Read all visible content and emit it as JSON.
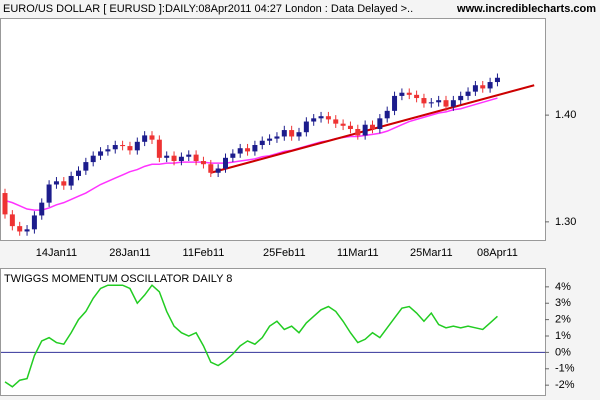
{
  "chart_data": [
    {
      "type": "candlestick",
      "title": "EURO/US DOLLAR [ EURUSD ]:DAILY:08Apr2011 04:27 London : Data Delayed >..",
      "source": "www.incrediblecharts.com",
      "categories": [
        null,
        null,
        null,
        null,
        null,
        null,
        null,
        "14Jan11",
        null,
        null,
        null,
        null,
        null,
        null,
        null,
        null,
        null,
        "28Jan11",
        null,
        null,
        null,
        null,
        null,
        null,
        null,
        null,
        null,
        "11Feb11",
        null,
        null,
        null,
        null,
        null,
        null,
        null,
        null,
        null,
        null,
        "25Feb11",
        null,
        null,
        null,
        null,
        null,
        null,
        null,
        null,
        null,
        "11Mar11",
        null,
        null,
        null,
        null,
        null,
        null,
        null,
        null,
        null,
        "25Mar11",
        null,
        null,
        null,
        null,
        null,
        null,
        null,
        null,
        "08Apr11"
      ],
      "open": [
        1.327,
        1.307,
        1.296,
        1.291,
        1.293,
        1.306,
        1.318,
        1.335,
        1.338,
        1.334,
        1.343,
        1.348,
        1.356,
        1.362,
        1.366,
        1.368,
        1.372,
        1.371,
        1.367,
        1.375,
        1.381,
        1.377,
        1.36,
        1.362,
        1.357,
        1.361,
        1.363,
        1.357,
        1.354,
        1.346,
        1.35,
        1.36,
        1.364,
        1.369,
        1.366,
        1.372,
        1.376,
        1.378,
        1.38,
        1.386,
        1.38,
        1.384,
        1.394,
        1.397,
        1.399,
        1.396,
        1.392,
        1.39,
        1.387,
        1.381,
        1.391,
        1.387,
        1.397,
        1.404,
        1.418,
        1.421,
        1.419,
        1.416,
        1.411,
        1.412,
        1.414,
        1.408,
        1.414,
        1.418,
        1.422,
        1.428,
        1.425,
        1.431
      ],
      "high": [
        1.331,
        1.311,
        1.3,
        1.297,
        1.31,
        1.322,
        1.339,
        1.342,
        1.342,
        1.347,
        1.352,
        1.36,
        1.366,
        1.37,
        1.372,
        1.376,
        1.376,
        1.375,
        1.379,
        1.385,
        1.385,
        1.381,
        1.366,
        1.366,
        1.365,
        1.367,
        1.367,
        1.361,
        1.358,
        1.354,
        1.364,
        1.368,
        1.373,
        1.373,
        1.376,
        1.38,
        1.382,
        1.384,
        1.39,
        1.39,
        1.388,
        1.398,
        1.401,
        1.403,
        1.403,
        1.4,
        1.396,
        1.394,
        1.391,
        1.395,
        1.395,
        1.401,
        1.408,
        1.422,
        1.425,
        1.425,
        1.423,
        1.42,
        1.416,
        1.418,
        1.418,
        1.418,
        1.422,
        1.426,
        1.432,
        1.432,
        1.435,
        1.439
      ],
      "low": [
        1.303,
        1.292,
        1.287,
        1.287,
        1.289,
        1.302,
        1.314,
        1.331,
        1.33,
        1.33,
        1.339,
        1.344,
        1.352,
        1.358,
        1.362,
        1.364,
        1.367,
        1.363,
        1.363,
        1.371,
        1.373,
        1.356,
        1.356,
        1.353,
        1.353,
        1.357,
        1.353,
        1.35,
        1.342,
        1.342,
        1.346,
        1.356,
        1.36,
        1.362,
        1.362,
        1.368,
        1.372,
        1.374,
        1.376,
        1.376,
        1.376,
        1.38,
        1.39,
        1.393,
        1.392,
        1.388,
        1.386,
        1.383,
        1.377,
        1.377,
        1.383,
        1.383,
        1.393,
        1.4,
        1.414,
        1.415,
        1.412,
        1.407,
        1.407,
        1.408,
        1.404,
        1.404,
        1.41,
        1.414,
        1.418,
        1.421,
        1.421,
        1.427
      ],
      "close": [
        1.307,
        1.296,
        1.291,
        1.293,
        1.306,
        1.318,
        1.335,
        1.338,
        1.334,
        1.343,
        1.348,
        1.356,
        1.362,
        1.366,
        1.368,
        1.372,
        1.371,
        1.367,
        1.375,
        1.381,
        1.377,
        1.36,
        1.362,
        1.357,
        1.361,
        1.363,
        1.357,
        1.354,
        1.346,
        1.35,
        1.36,
        1.364,
        1.369,
        1.366,
        1.372,
        1.376,
        1.378,
        1.38,
        1.386,
        1.38,
        1.384,
        1.394,
        1.397,
        1.399,
        1.396,
        1.392,
        1.39,
        1.387,
        1.381,
        1.391,
        1.387,
        1.397,
        1.404,
        1.418,
        1.421,
        1.419,
        1.416,
        1.411,
        1.412,
        1.414,
        1.408,
        1.414,
        1.418,
        1.422,
        1.428,
        1.425,
        1.431,
        1.435
      ],
      "up_color": "#1c1c8c",
      "down_color": "#ee3333",
      "series": [
        {
          "color": "#ff33ff",
          "values": [
            1.32,
            1.318,
            1.315,
            1.312,
            1.311,
            1.311,
            1.313,
            1.316,
            1.318,
            1.321,
            1.324,
            1.327,
            1.331,
            1.335,
            1.338,
            1.341,
            1.344,
            1.347,
            1.349,
            1.352,
            1.354,
            1.354,
            1.355,
            1.355,
            1.356,
            1.356,
            1.356,
            1.356,
            1.355,
            1.355,
            1.355,
            1.356,
            1.357,
            1.358,
            1.359,
            1.361,
            1.362,
            1.364,
            1.366,
            1.367,
            1.369,
            1.371,
            1.373,
            1.375,
            1.376,
            1.378,
            1.379,
            1.38,
            1.38,
            1.381,
            1.382,
            1.383,
            1.385,
            1.388,
            1.391,
            1.394,
            1.396,
            1.398,
            1.4,
            1.402,
            1.403,
            1.405,
            1.406,
            1.408,
            1.41,
            1.412,
            1.414,
            1.416
          ]
        }
      ],
      "trendline": {
        "color": "#cc0000",
        "index": [
          28,
          72
        ],
        "values": [
          1.346,
          1.428
        ]
      },
      "ylim": [
        1.283,
        1.491
      ],
      "yticks": [
        {
          "value": 1.3,
          "label": "1.30"
        },
        {
          "value": 1.4,
          "label": "1.40"
        }
      ]
    },
    {
      "type": "line",
      "title": "TWIGGS MOMENTUM OSCILLATOR DAILY 8",
      "series": [
        {
          "color": "#22cc22",
          "values": [
            -1.8,
            -2.1,
            -1.7,
            -1.6,
            -0.2,
            0.7,
            0.9,
            0.6,
            0.5,
            1.2,
            2.0,
            2.5,
            3.3,
            3.9,
            4.1,
            4.1,
            4.1,
            3.9,
            3.0,
            3.5,
            4.1,
            3.7,
            2.5,
            1.6,
            1.2,
            1.0,
            1.2,
            0.4,
            -0.6,
            -0.8,
            -0.5,
            -0.1,
            0.4,
            0.7,
            0.5,
            0.9,
            1.6,
            1.9,
            1.4,
            1.6,
            1.2,
            1.8,
            2.2,
            2.6,
            2.8,
            2.5,
            1.9,
            1.2,
            0.6,
            0.8,
            1.2,
            0.9,
            1.5,
            2.1,
            2.7,
            2.8,
            2.4,
            1.9,
            2.4,
            1.7,
            1.5,
            1.6,
            1.5,
            1.6,
            1.5,
            1.4,
            1.8,
            2.2
          ]
        }
      ],
      "zero_line_color": "#333399",
      "ylim": [
        -2.6,
        5.15
      ],
      "yticks": [
        {
          "value": 4,
          "label": "4%"
        },
        {
          "value": 3,
          "label": "3%"
        },
        {
          "value": 2,
          "label": "2%"
        },
        {
          "value": 1,
          "label": "1%"
        },
        {
          "value": 0,
          "label": "0%"
        },
        {
          "value": -1,
          "label": "-1%"
        },
        {
          "value": -2,
          "label": "-2%"
        }
      ]
    }
  ]
}
